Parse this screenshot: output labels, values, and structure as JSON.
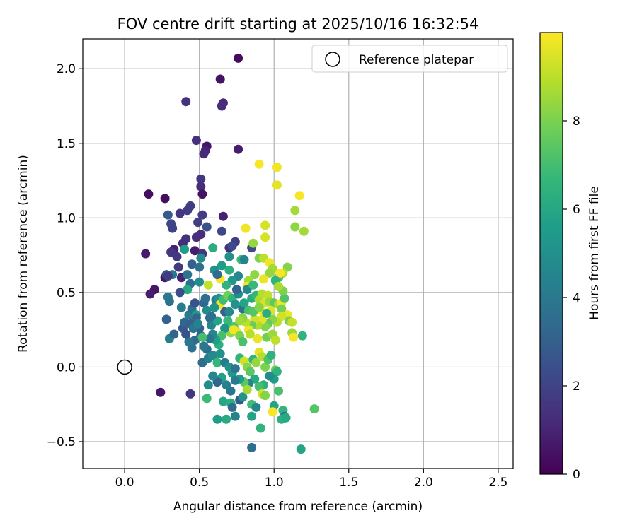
{
  "chart_data": {
    "type": "scatter",
    "title": "FOV centre drift starting at 2025/10/16 16:32:54",
    "xlabel": "Angular distance from reference (arcmin)",
    "ylabel": "Rotation from reference (arcmin)",
    "xlim": [
      -0.28,
      2.6
    ],
    "ylim": [
      -0.68,
      2.2
    ],
    "xticks": [
      0.0,
      0.5,
      1.0,
      1.5,
      2.0,
      2.5
    ],
    "xtick_labels": [
      "0.0",
      "0.5",
      "1.0",
      "1.5",
      "2.0",
      "2.5"
    ],
    "yticks": [
      -0.5,
      0.0,
      0.5,
      1.0,
      1.5,
      2.0
    ],
    "ytick_labels": [
      "−0.5",
      "0.0",
      "0.5",
      "1.0",
      "1.5",
      "2.0"
    ],
    "grid": true,
    "legend": {
      "location": "top-right",
      "entries": [
        "Reference platepar"
      ]
    },
    "reference_point": {
      "x": 0.0,
      "y": 0.0,
      "label": "Reference platepar"
    },
    "colorbar": {
      "label": "Hours from first FF file",
      "range": [
        0,
        10
      ],
      "ticks": [
        0,
        2,
        4,
        6,
        8
      ],
      "tick_labels": [
        "0",
        "2",
        "4",
        "6",
        "8"
      ],
      "colormap": "viridis"
    },
    "colormap_stops": [
      "#440154",
      "#482878",
      "#3e4989",
      "#31688e",
      "#26828e",
      "#1f9e89",
      "#35b779",
      "#6ece58",
      "#b5de2b",
      "#fde725"
    ],
    "points": [
      [
        0.76,
        2.07,
        0.3
      ],
      [
        0.64,
        1.93,
        0.5
      ],
      [
        0.66,
        1.77,
        1.2
      ],
      [
        0.65,
        1.75,
        1.3
      ],
      [
        0.41,
        1.78,
        1.4
      ],
      [
        0.48,
        1.52,
        1.4
      ],
      [
        0.55,
        1.48,
        0.6
      ],
      [
        0.54,
        1.45,
        1.0
      ],
      [
        0.53,
        1.43,
        1.2
      ],
      [
        0.76,
        1.46,
        0.8
      ],
      [
        0.51,
        1.26,
        1.6
      ],
      [
        0.51,
        1.21,
        1.3
      ],
      [
        0.52,
        1.16,
        0.5
      ],
      [
        0.16,
        1.16,
        0.4
      ],
      [
        0.27,
        1.13,
        0.4
      ],
      [
        0.44,
        1.08,
        1.8
      ],
      [
        0.42,
        1.05,
        1.8
      ],
      [
        0.37,
        1.03,
        1.6
      ],
      [
        0.29,
        1.02,
        2.8
      ],
      [
        0.52,
        1.02,
        1.8
      ],
      [
        0.66,
        1.01,
        0.9
      ],
      [
        0.49,
        0.97,
        1.9
      ],
      [
        0.31,
        0.96,
        2.1
      ],
      [
        0.32,
        0.93,
        2.0
      ],
      [
        0.55,
        0.94,
        2.5
      ],
      [
        0.65,
        0.91,
        2.2
      ],
      [
        0.51,
        0.89,
        1.3
      ],
      [
        0.48,
        0.87,
        1.3
      ],
      [
        0.41,
        0.86,
        1.4
      ],
      [
        0.39,
        0.83,
        1.3
      ],
      [
        0.33,
        0.79,
        0.9
      ],
      [
        0.31,
        0.77,
        1.6
      ],
      [
        0.4,
        0.79,
        5.5
      ],
      [
        0.47,
        0.78,
        0.8
      ],
      [
        0.52,
        0.76,
        1.6
      ],
      [
        0.35,
        0.74,
        1.7
      ],
      [
        0.14,
        0.76,
        0.7
      ],
      [
        0.7,
        0.8,
        1.4
      ],
      [
        0.74,
        0.84,
        1.8
      ],
      [
        0.72,
        0.81,
        2.3
      ],
      [
        0.59,
        0.8,
        6.2
      ],
      [
        0.51,
        0.73,
        4.8
      ],
      [
        0.45,
        0.69,
        3.0
      ],
      [
        0.38,
        0.6,
        1.0
      ],
      [
        0.32,
        0.62,
        4.0
      ],
      [
        0.27,
        0.6,
        0.6
      ],
      [
        0.28,
        0.62,
        2.6
      ],
      [
        0.42,
        0.62,
        3.9
      ],
      [
        0.5,
        0.67,
        3.7
      ],
      [
        0.6,
        0.65,
        5.0
      ],
      [
        0.65,
        0.68,
        5.5
      ],
      [
        0.7,
        0.74,
        5.0
      ],
      [
        0.78,
        0.72,
        6.8
      ],
      [
        0.8,
        0.72,
        4.5
      ],
      [
        0.85,
        0.8,
        2.3
      ],
      [
        0.86,
        0.83,
        8.4
      ],
      [
        0.9,
        0.73,
        8.0
      ],
      [
        0.93,
        0.73,
        9.0
      ],
      [
        0.94,
        0.87,
        9.4
      ],
      [
        0.94,
        0.95,
        9.4
      ],
      [
        0.81,
        0.93,
        9.8
      ],
      [
        0.9,
        1.36,
        9.9
      ],
      [
        1.02,
        1.34,
        9.8
      ],
      [
        1.02,
        1.22,
        9.6
      ],
      [
        1.17,
        1.15,
        9.9
      ],
      [
        1.14,
        1.05,
        8.6
      ],
      [
        1.14,
        0.94,
        8.3
      ],
      [
        1.2,
        0.91,
        8.6
      ],
      [
        1.09,
        0.67,
        8.1
      ],
      [
        1.06,
        0.63,
        8.8
      ],
      [
        1.03,
        0.6,
        7.0
      ],
      [
        0.97,
        0.7,
        9.8
      ],
      [
        0.99,
        0.66,
        8.6
      ],
      [
        1.04,
        0.63,
        9.9
      ],
      [
        1.01,
        0.58,
        6.5
      ],
      [
        0.97,
        0.63,
        8.4
      ],
      [
        0.93,
        0.59,
        9.7
      ],
      [
        0.87,
        0.62,
        8.3
      ],
      [
        0.83,
        0.58,
        8.6
      ],
      [
        0.82,
        0.54,
        9.9
      ],
      [
        0.76,
        0.61,
        4.7
      ],
      [
        0.72,
        0.58,
        5.3
      ],
      [
        0.68,
        0.55,
        6.4
      ],
      [
        0.64,
        0.59,
        9.9
      ],
      [
        0.56,
        0.55,
        9.1
      ],
      [
        0.5,
        0.57,
        4.9
      ],
      [
        0.44,
        0.56,
        3.6
      ],
      [
        0.42,
        0.52,
        6.0
      ],
      [
        0.37,
        0.5,
        2.4
      ],
      [
        0.29,
        0.47,
        4.0
      ],
      [
        0.3,
        0.44,
        3.8
      ],
      [
        0.2,
        0.52,
        0.6
      ],
      [
        0.17,
        0.49,
        0.8
      ],
      [
        0.28,
        0.32,
        3.1
      ],
      [
        0.3,
        0.19,
        4.3
      ],
      [
        0.33,
        0.22,
        3.2
      ],
      [
        0.39,
        0.26,
        2.8
      ],
      [
        0.4,
        0.3,
        3.3
      ],
      [
        0.43,
        0.35,
        4.2
      ],
      [
        0.45,
        0.39,
        3.6
      ],
      [
        0.47,
        0.43,
        2.6
      ],
      [
        0.48,
        0.35,
        5.5
      ],
      [
        0.48,
        0.33,
        3.2
      ],
      [
        0.53,
        0.43,
        3.3
      ],
      [
        0.54,
        0.46,
        3.7
      ],
      [
        0.55,
        0.38,
        4.8
      ],
      [
        0.57,
        0.33,
        3.4
      ],
      [
        0.58,
        0.28,
        4.5
      ],
      [
        0.62,
        0.31,
        5.8
      ],
      [
        0.61,
        0.45,
        4.0
      ],
      [
        0.63,
        0.46,
        5.2
      ],
      [
        0.64,
        0.42,
        9.8
      ],
      [
        0.66,
        0.45,
        6.9
      ],
      [
        0.69,
        0.48,
        7.8
      ],
      [
        0.72,
        0.46,
        6.5
      ],
      [
        0.74,
        0.42,
        5.1
      ],
      [
        0.76,
        0.49,
        4.9
      ],
      [
        0.79,
        0.39,
        3.8
      ],
      [
        0.8,
        0.43,
        5.8
      ],
      [
        0.83,
        0.38,
        7.0
      ],
      [
        0.85,
        0.46,
        6.1
      ],
      [
        0.88,
        0.48,
        6.6
      ],
      [
        0.9,
        0.45,
        8.7
      ],
      [
        0.92,
        0.49,
        8.9
      ],
      [
        0.94,
        0.43,
        9.4
      ],
      [
        0.96,
        0.48,
        9.1
      ],
      [
        0.97,
        0.44,
        8.5
      ],
      [
        1.0,
        0.43,
        7.5
      ],
      [
        1.03,
        0.42,
        8.7
      ],
      [
        1.05,
        0.43,
        9.8
      ],
      [
        1.05,
        0.39,
        7.9
      ],
      [
        1.07,
        0.46,
        7.2
      ],
      [
        1.06,
        0.51,
        8.0
      ],
      [
        1.09,
        0.35,
        9.7
      ],
      [
        1.1,
        0.31,
        7.9
      ],
      [
        1.12,
        0.3,
        9.1
      ],
      [
        1.12,
        0.23,
        8.5
      ],
      [
        1.13,
        0.2,
        9.9
      ],
      [
        1.19,
        0.21,
        6.5
      ],
      [
        1.05,
        0.34,
        9.3
      ],
      [
        1.02,
        0.3,
        8.9
      ],
      [
        0.99,
        0.32,
        8.2
      ],
      [
        0.96,
        0.29,
        7.6
      ],
      [
        0.94,
        0.27,
        8.1
      ],
      [
        0.92,
        0.32,
        9.6
      ],
      [
        0.89,
        0.28,
        8.8
      ],
      [
        0.87,
        0.32,
        9.3
      ],
      [
        0.85,
        0.28,
        7.7
      ],
      [
        0.83,
        0.25,
        9.8
      ],
      [
        0.81,
        0.3,
        9.0
      ],
      [
        0.79,
        0.33,
        8.2
      ],
      [
        0.77,
        0.31,
        8.6
      ],
      [
        0.75,
        0.24,
        9.9
      ],
      [
        0.73,
        0.27,
        7.3
      ],
      [
        0.71,
        0.23,
        8.3
      ],
      [
        0.69,
        0.31,
        6.7
      ],
      [
        0.67,
        0.26,
        5.2
      ],
      [
        0.65,
        0.21,
        7.0
      ],
      [
        0.63,
        0.15,
        6.3
      ],
      [
        0.61,
        0.18,
        5.6
      ],
      [
        0.59,
        0.22,
        4.6
      ],
      [
        0.57,
        0.19,
        3.9
      ],
      [
        0.55,
        0.12,
        3.5
      ],
      [
        0.53,
        0.14,
        4.1
      ],
      [
        0.51,
        0.21,
        2.9
      ],
      [
        0.5,
        0.26,
        3.1
      ],
      [
        0.47,
        0.18,
        3.4
      ],
      [
        0.45,
        0.13,
        3.7
      ],
      [
        0.43,
        0.17,
        4.0
      ],
      [
        0.41,
        0.22,
        2.5
      ],
      [
        0.44,
        0.29,
        3.0
      ],
      [
        0.52,
        0.2,
        7.0
      ],
      [
        0.52,
        0.03,
        3.5
      ],
      [
        0.56,
        0.06,
        4.4
      ],
      [
        0.59,
        0.08,
        4.8
      ],
      [
        0.62,
        0.03,
        6.6
      ],
      [
        0.64,
        0.09,
        5.0
      ],
      [
        0.67,
        0.03,
        4.2
      ],
      [
        0.7,
        0.0,
        5.0
      ],
      [
        0.72,
        -0.04,
        5.3
      ],
      [
        0.74,
        -0.01,
        3.9
      ],
      [
        0.77,
        0.06,
        6.5
      ],
      [
        0.8,
        0.04,
        9.3
      ],
      [
        0.82,
        0.0,
        8.2
      ],
      [
        0.84,
        -0.03,
        7.4
      ],
      [
        0.86,
        0.05,
        6.5
      ],
      [
        0.88,
        0.03,
        8.4
      ],
      [
        0.9,
        0.1,
        9.6
      ],
      [
        0.92,
        0.07,
        8.9
      ],
      [
        0.94,
        0.0,
        8.0
      ],
      [
        0.96,
        0.05,
        7.2
      ],
      [
        0.98,
        0.08,
        6.4
      ],
      [
        1.01,
        -0.02,
        7.8
      ],
      [
        1.02,
        -0.03,
        6.5
      ],
      [
        1.0,
        -0.08,
        5.5
      ],
      [
        0.97,
        -0.06,
        4.8
      ],
      [
        0.93,
        -0.12,
        6.3
      ],
      [
        0.9,
        -0.13,
        7.0
      ],
      [
        0.87,
        -0.08,
        6.0
      ],
      [
        0.83,
        -0.11,
        4.5
      ],
      [
        0.8,
        -0.1,
        7.4
      ],
      [
        0.77,
        -0.08,
        5.6
      ],
      [
        0.74,
        -0.09,
        4.2
      ],
      [
        0.71,
        -0.16,
        3.9
      ],
      [
        0.68,
        -0.12,
        4.4
      ],
      [
        0.65,
        -0.07,
        5.7
      ],
      [
        0.62,
        -0.1,
        3.3
      ],
      [
        0.59,
        -0.06,
        4.6
      ],
      [
        0.56,
        -0.12,
        4.9
      ],
      [
        0.55,
        -0.21,
        6.8
      ],
      [
        0.66,
        -0.23,
        5.9
      ],
      [
        0.71,
        -0.24,
        6.2
      ],
      [
        0.72,
        -0.27,
        3.5
      ],
      [
        0.77,
        -0.22,
        2.8
      ],
      [
        0.79,
        -0.2,
        5.1
      ],
      [
        0.82,
        -0.15,
        8.6
      ],
      [
        0.85,
        -0.25,
        6.9
      ],
      [
        0.88,
        -0.27,
        4.6
      ],
      [
        0.92,
        -0.18,
        9.4
      ],
      [
        0.94,
        -0.19,
        8.1
      ],
      [
        1.0,
        -0.26,
        5.8
      ],
      [
        1.03,
        -0.16,
        7.1
      ],
      [
        1.06,
        -0.29,
        6.6
      ],
      [
        1.07,
        -0.33,
        4.2
      ],
      [
        0.99,
        -0.3,
        9.9
      ],
      [
        1.05,
        -0.35,
        6.3
      ],
      [
        1.08,
        -0.34,
        6.0
      ],
      [
        0.91,
        -0.41,
        6.5
      ],
      [
        0.85,
        -0.33,
        5.8
      ],
      [
        0.74,
        -0.33,
        4.5
      ],
      [
        0.68,
        -0.35,
        6.1
      ],
      [
        0.62,
        -0.35,
        5.5
      ],
      [
        0.85,
        -0.54,
        3.6
      ],
      [
        1.18,
        -0.55,
        5.8
      ],
      [
        1.27,
        -0.28,
        7.3
      ],
      [
        0.44,
        -0.18,
        1.6
      ],
      [
        0.24,
        -0.17,
        0.6
      ],
      [
        0.29,
        0.61,
        1.8
      ],
      [
        0.36,
        0.67,
        1.7
      ],
      [
        0.67,
        0.37,
        3.1
      ],
      [
        0.73,
        0.25,
        9.8
      ],
      [
        0.77,
        0.21,
        8.0
      ],
      [
        0.84,
        0.22,
        8.9
      ],
      [
        0.89,
        0.19,
        9.7
      ],
      [
        0.95,
        0.2,
        7.8
      ],
      [
        0.99,
        0.22,
        8.5
      ],
      [
        1.01,
        0.18,
        9.0
      ],
      [
        0.91,
        0.38,
        9.9
      ],
      [
        0.98,
        0.38,
        9.5
      ],
      [
        0.86,
        0.37,
        7.3
      ],
      [
        0.7,
        0.37,
        4.7
      ],
      [
        0.6,
        0.4,
        5.1
      ],
      [
        0.58,
        0.34,
        3.6
      ],
      [
        0.38,
        0.4,
        4.2
      ],
      [
        0.46,
        0.26,
        3.9
      ],
      [
        0.49,
        0.29,
        4.4
      ],
      [
        0.62,
        0.62,
        3.4
      ],
      [
        0.7,
        0.65,
        6.3
      ],
      [
        0.75,
        0.52,
        3.2
      ],
      [
        0.82,
        0.52,
        4.7
      ],
      [
        0.86,
        0.55,
        6.7
      ],
      [
        0.9,
        0.4,
        8.1
      ],
      [
        1.03,
        0.54,
        8.7
      ],
      [
        0.95,
        0.36,
        6.2
      ],
      [
        0.79,
        0.17,
        7.1
      ]
    ]
  }
}
